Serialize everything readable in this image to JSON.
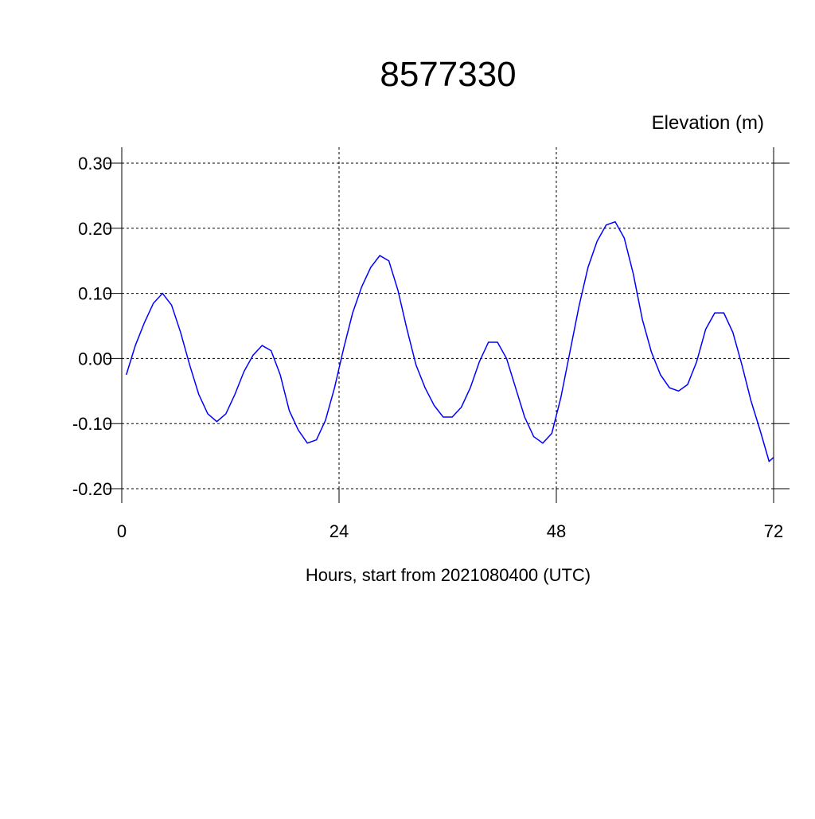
{
  "chart_data": {
    "type": "line",
    "title": "8577330",
    "ylabel": "Elevation (m)",
    "xlabel": "Hours, start from 2021080400 (UTC)",
    "xlim": [
      0,
      72
    ],
    "xticks": [
      0,
      24,
      48,
      72
    ],
    "ylim": [
      -0.2,
      0.3
    ],
    "yticks": [
      {
        "value": -0.2,
        "label": "-0.20"
      },
      {
        "value": -0.1,
        "label": "-0.10"
      },
      {
        "value": 0,
        "label": "0.00"
      },
      {
        "value": 0.1,
        "label": "0.10"
      },
      {
        "value": 0.2,
        "label": "0.20"
      },
      {
        "value": 0.3,
        "label": "0.30"
      }
    ],
    "grid": true,
    "series": [
      {
        "color": "#0000ff",
        "x": [
          0.5,
          1.5,
          2.5,
          3.5,
          4.5,
          5.5,
          6.5,
          7.5,
          8.5,
          9.5,
          10.5,
          11.5,
          12.5,
          13.5,
          14.5,
          15.5,
          16.5,
          17.5,
          18.5,
          19.5,
          20.5,
          21.5,
          22.5,
          23.5,
          24.5,
          25.5,
          26.5,
          27.5,
          28.5,
          29.5,
          30.5,
          31.5,
          32.5,
          33.5,
          34.5,
          35.5,
          36.5,
          37.5,
          38.5,
          39.5,
          40.5,
          41.5,
          42.5,
          43.5,
          44.5,
          45.5,
          46.5,
          47.5,
          48.5,
          49.5,
          50.5,
          51.5,
          52.5,
          53.5,
          54.5,
          55.5,
          56.5,
          57.5,
          58.5,
          59.5,
          60.5,
          61.5,
          62.5,
          63.5,
          64.5,
          65.5,
          66.5,
          67.5,
          68.5,
          69.5,
          70.5,
          71.5,
          72
        ],
        "values": [
          -0.025,
          0.02,
          0.055,
          0.085,
          0.1,
          0.082,
          0.04,
          -0.01,
          -0.055,
          -0.085,
          -0.097,
          -0.085,
          -0.055,
          -0.02,
          0.005,
          0.02,
          0.012,
          -0.025,
          -0.08,
          -0.11,
          -0.13,
          -0.125,
          -0.095,
          -0.045,
          0.015,
          0.07,
          0.11,
          0.14,
          0.158,
          0.15,
          0.105,
          0.045,
          -0.01,
          -0.045,
          -0.072,
          -0.09,
          -0.09,
          -0.075,
          -0.045,
          -0.005,
          0.025,
          0.025,
          0,
          -0.045,
          -0.09,
          -0.12,
          -0.13,
          -0.115,
          -0.06,
          0.01,
          0.08,
          0.14,
          0.18,
          0.205,
          0.21,
          0.185,
          0.13,
          0.06,
          0.01,
          -0.025,
          -0.045,
          -0.05,
          -0.04,
          -0.005,
          0.045,
          0.07,
          0.07,
          0.04,
          -0.01,
          -0.065,
          -0.11,
          -0.158,
          -0.152
        ]
      }
    ]
  }
}
